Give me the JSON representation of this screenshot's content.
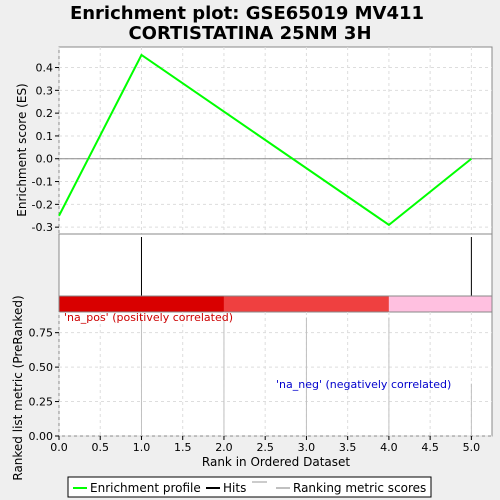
{
  "chart_data": {
    "type": "line",
    "title_line1": "Enrichment plot: GSE65019 MV411",
    "title_line2": "CORTISTATINA 25NM 3H",
    "es_panel": {
      "ylabel": "Enrichment score (ES)",
      "ylim": [
        -0.33,
        0.49
      ],
      "yticks": [
        "0.4",
        "0.3",
        "0.2",
        "0.1",
        "0.0",
        "-0.1",
        "-0.2",
        "-0.3"
      ],
      "ytick_values": [
        0.4,
        0.3,
        0.2,
        0.1,
        0.0,
        -0.1,
        -0.2,
        -0.3
      ],
      "series": [
        {
          "name": "Enrichment profile",
          "color": "#00ff00",
          "x": [
            0,
            1,
            4,
            5
          ],
          "y": [
            -0.25,
            0.455,
            -0.29,
            0.0
          ]
        }
      ],
      "zero_line": 0.0
    },
    "hits": {
      "x": [
        1,
        5
      ],
      "color": "#000000"
    },
    "color_bar": [
      {
        "from": 0,
        "to": 2,
        "color": "#d90000"
      },
      {
        "from": 2,
        "to": 4,
        "color": "#ef4040"
      },
      {
        "from": 4,
        "to": 5.25,
        "color": "#ffc0e0"
      }
    ],
    "rank_panel": {
      "ylabel": "Ranked list metric (PreRanked)",
      "xlabel": "Rank in Ordered Dataset",
      "ylim": [
        0,
        0.9
      ],
      "yticks": [
        "0.75",
        "0.50",
        "0.25",
        "0.00"
      ],
      "ytick_values": [
        0.75,
        0.5,
        0.25,
        0.0
      ],
      "xlim": [
        0,
        5.25
      ],
      "xticks": [
        "0.0",
        "0.5",
        "1.0",
        "1.5",
        "2.0",
        "2.5",
        "3.0",
        "3.5",
        "4.0",
        "4.5",
        "5.0"
      ],
      "xtick_values": [
        0,
        0.5,
        1,
        1.5,
        2,
        2.5,
        3,
        3.5,
        4,
        4.5,
        5
      ],
      "metric_scores": [
        {
          "x": 1,
          "y": 0.86
        },
        {
          "x": 2,
          "y": 0.86
        },
        {
          "x": 3,
          "y": 0.86
        },
        {
          "x": 4,
          "y": 0.86
        },
        {
          "x": 5,
          "y": 0.38
        }
      ],
      "pos_label": "'na_pos' (positively correlated)",
      "neg_label": "'na_neg' (negatively correlated)",
      "pos_color": "#cc0000",
      "neg_color": "#0000cc"
    },
    "legend": {
      "placement": "bottom",
      "items": [
        {
          "label": "Enrichment profile",
          "color": "#00ff00"
        },
        {
          "label": "Hits",
          "color": "#000000"
        },
        {
          "label": "Ranking metric scores",
          "color": "#c0c0c0"
        }
      ]
    },
    "grid": true
  }
}
